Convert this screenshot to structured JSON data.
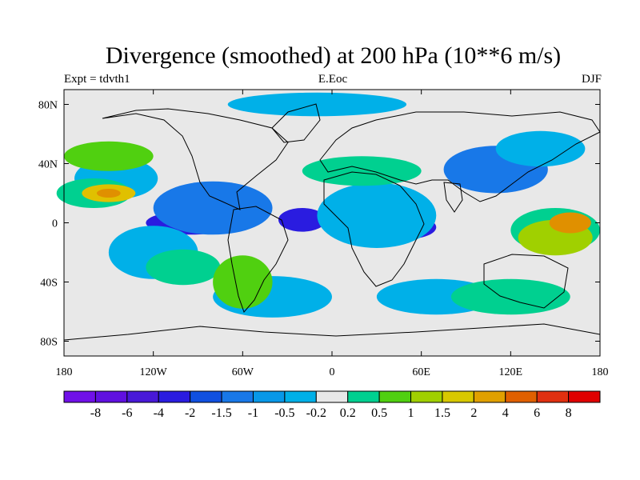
{
  "title": "Divergence (smoothed) at 200 hPa (10**6 m/s)",
  "subtitle": {
    "left": "Expt = tdvth1",
    "center": "E.Eoc",
    "right": "DJF"
  },
  "map": {
    "projection": "cylindrical equidistant",
    "lon_range": [
      -180,
      180
    ],
    "lat_range": [
      -90,
      90
    ],
    "x_ticks": [
      {
        "lon": -180,
        "label": "180"
      },
      {
        "lon": -120,
        "label": "120W"
      },
      {
        "lon": -60,
        "label": "60W"
      },
      {
        "lon": 0,
        "label": "0"
      },
      {
        "lon": 60,
        "label": "60E"
      },
      {
        "lon": 120,
        "label": "120E"
      },
      {
        "lon": 180,
        "label": "180"
      }
    ],
    "y_ticks": [
      {
        "lat": 80,
        "label": "80N"
      },
      {
        "lat": 40,
        "label": "40N"
      },
      {
        "lat": 0,
        "label": "0"
      },
      {
        "lat": -40,
        "label": "40S"
      },
      {
        "lat": -80,
        "label": "80S"
      }
    ],
    "fields": [
      {
        "lon": -95,
        "lat": 0,
        "rx": 30,
        "ry": 8,
        "color": "#2a1ce0"
      },
      {
        "lon": -20,
        "lat": 2,
        "rx": 16,
        "ry": 8,
        "color": "#2a1ce0"
      },
      {
        "lon": 50,
        "lat": -3,
        "rx": 20,
        "ry": 8,
        "color": "#2a1ce0"
      },
      {
        "lon": 120,
        "lat": 38,
        "rx": 18,
        "ry": 10,
        "color": "#2a1ce0"
      },
      {
        "lon": -80,
        "lat": 10,
        "rx": 40,
        "ry": 18,
        "color": "#1878e8"
      },
      {
        "lon": 110,
        "lat": 36,
        "rx": 35,
        "ry": 16,
        "color": "#1878e8"
      },
      {
        "lon": -145,
        "lat": 30,
        "rx": 28,
        "ry": 14,
        "color": "#00b0e8"
      },
      {
        "lon": 30,
        "lat": 5,
        "rx": 40,
        "ry": 22,
        "color": "#00b0e8"
      },
      {
        "lon": 140,
        "lat": 50,
        "rx": 30,
        "ry": 12,
        "color": "#00b0e8"
      },
      {
        "lon": -120,
        "lat": -20,
        "rx": 30,
        "ry": 18,
        "color": "#00b0e8"
      },
      {
        "lon": -40,
        "lat": -50,
        "rx": 40,
        "ry": 14,
        "color": "#00b0e8"
      },
      {
        "lon": 70,
        "lat": -50,
        "rx": 40,
        "ry": 12,
        "color": "#00b0e8"
      },
      {
        "lon": -10,
        "lat": 80,
        "rx": 60,
        "ry": 8,
        "color": "#00b0e8"
      },
      {
        "lon": -160,
        "lat": 20,
        "rx": 25,
        "ry": 10,
        "color": "#00d090"
      },
      {
        "lon": -100,
        "lat": -30,
        "rx": 25,
        "ry": 12,
        "color": "#00d090"
      },
      {
        "lon": 20,
        "lat": 35,
        "rx": 40,
        "ry": 10,
        "color": "#00d090"
      },
      {
        "lon": 150,
        "lat": -5,
        "rx": 30,
        "ry": 15,
        "color": "#00d090"
      },
      {
        "lon": 120,
        "lat": -50,
        "rx": 40,
        "ry": 12,
        "color": "#00d090"
      },
      {
        "lon": -60,
        "lat": -40,
        "rx": 20,
        "ry": 18,
        "color": "#50d010"
      },
      {
        "lon": -150,
        "lat": 45,
        "rx": 30,
        "ry": 10,
        "color": "#50d010"
      },
      {
        "lon": 150,
        "lat": -10,
        "rx": 25,
        "ry": 12,
        "color": "#a0d000"
      },
      {
        "lon": -150,
        "lat": 20,
        "rx": 18,
        "ry": 6,
        "color": "#e0c000"
      },
      {
        "lon": 160,
        "lat": 0,
        "rx": 14,
        "ry": 7,
        "color": "#e09000"
      },
      {
        "lon": -150,
        "lat": 20,
        "rx": 8,
        "ry": 3,
        "color": "#e09000"
      }
    ]
  },
  "colorbar": {
    "colors": [
      "#7010e8",
      "#6010e0",
      "#4818d8",
      "#2a1ce0",
      "#1050e0",
      "#1878e8",
      "#0898e8",
      "#00b0e8",
      "#e8e8e8",
      "#00d090",
      "#50d010",
      "#a0d000",
      "#d8c800",
      "#e0a000",
      "#e06000",
      "#e03010",
      "#e00000"
    ],
    "labels": [
      "-8",
      "-6",
      "-4",
      "-2",
      "-1.5",
      "-1",
      "-0.5",
      "-0.2",
      "0.2",
      "0.5",
      "1",
      "1.5",
      "2",
      "4",
      "6",
      "8"
    ]
  }
}
